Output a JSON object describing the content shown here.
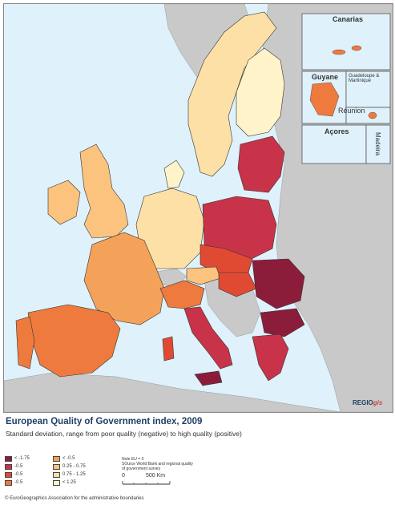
{
  "map": {
    "insets": {
      "canarias": "Canarias",
      "guyane": "Guyane",
      "guadeloupe_martinique": "Guadeloupe & Martinique",
      "reunion": "Réunion",
      "acores": "Açores",
      "madeira": "Madeira"
    },
    "logo_main": "REGIO",
    "logo_accent": "gis"
  },
  "title": "European Quality of Government index, 2009",
  "subtitle": "Standard deviation, range from poor quality (negative) to high quality (positive)",
  "legend": {
    "items": [
      {
        "label": "< -1.75",
        "color": "#8c1d3a"
      },
      {
        "label": "-0.5",
        "color": "#c8334a"
      },
      {
        "label": "-0.5",
        "color": "#e04a33"
      },
      {
        "label": "-0.5",
        "color": "#ee7a3e"
      },
      {
        "label": "< -0.5",
        "color": "#f4a25a"
      },
      {
        "label": "0.25 - 0.75",
        "color": "#fbc37e"
      },
      {
        "label": "0.75 - 1.25",
        "color": "#fde0a6"
      },
      {
        "label": "< 1.25",
        "color": "#fff3c9"
      }
    ]
  },
  "note": {
    "line1": "Note EU = 0",
    "line2": "SOurce World Bank and regional quality",
    "line3": "of government survey"
  },
  "scale": {
    "start": "0",
    "end": "500 Km"
  },
  "copyright": "© EuroGeographics Association for the administrative boundaries"
}
